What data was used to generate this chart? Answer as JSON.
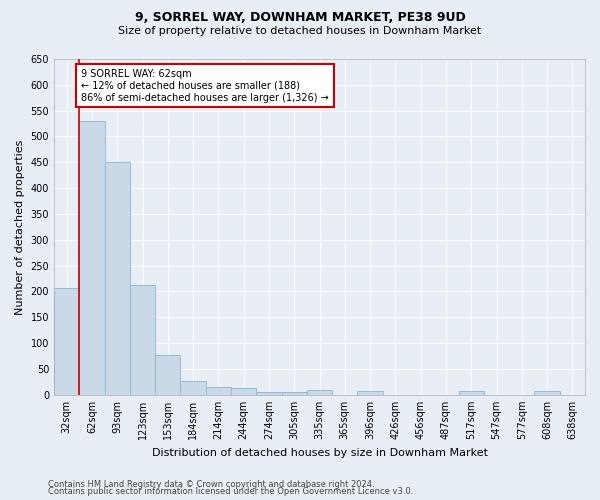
{
  "title": "9, SORREL WAY, DOWNHAM MARKET, PE38 9UD",
  "subtitle": "Size of property relative to detached houses in Downham Market",
  "xlabel": "Distribution of detached houses by size in Downham Market",
  "ylabel": "Number of detached properties",
  "bar_color": "#c9d9e8",
  "bar_edge_color": "#8ab4d0",
  "background_color": "#e8eef5",
  "grid_color": "#ffffff",
  "categories": [
    "32sqm",
    "62sqm",
    "93sqm",
    "123sqm",
    "153sqm",
    "184sqm",
    "214sqm",
    "244sqm",
    "274sqm",
    "305sqm",
    "335sqm",
    "365sqm",
    "396sqm",
    "426sqm",
    "456sqm",
    "487sqm",
    "517sqm",
    "547sqm",
    "577sqm",
    "608sqm",
    "638sqm"
  ],
  "values": [
    207,
    530,
    450,
    212,
    78,
    27,
    15,
    13,
    5,
    5,
    10,
    0,
    7,
    0,
    0,
    0,
    7,
    0,
    0,
    7,
    0
  ],
  "ylim": [
    0,
    650
  ],
  "yticks": [
    0,
    50,
    100,
    150,
    200,
    250,
    300,
    350,
    400,
    450,
    500,
    550,
    600,
    650
  ],
  "red_line_color": "#cc0000",
  "annotation_title": "9 SORREL WAY: 62sqm",
  "annotation_line1": "← 12% of detached houses are smaller (188)",
  "annotation_line2": "86% of semi-detached houses are larger (1,326) →",
  "annotation_box_color": "#ffffff",
  "annotation_box_edge": "#cc0000",
  "footnote1": "Contains HM Land Registry data © Crown copyright and database right 2024.",
  "footnote2": "Contains public sector information licensed under the Open Government Licence v3.0.",
  "title_fontsize": 9,
  "subtitle_fontsize": 8,
  "ylabel_fontsize": 8,
  "xlabel_fontsize": 8,
  "tick_fontsize": 7,
  "footnote_fontsize": 6
}
